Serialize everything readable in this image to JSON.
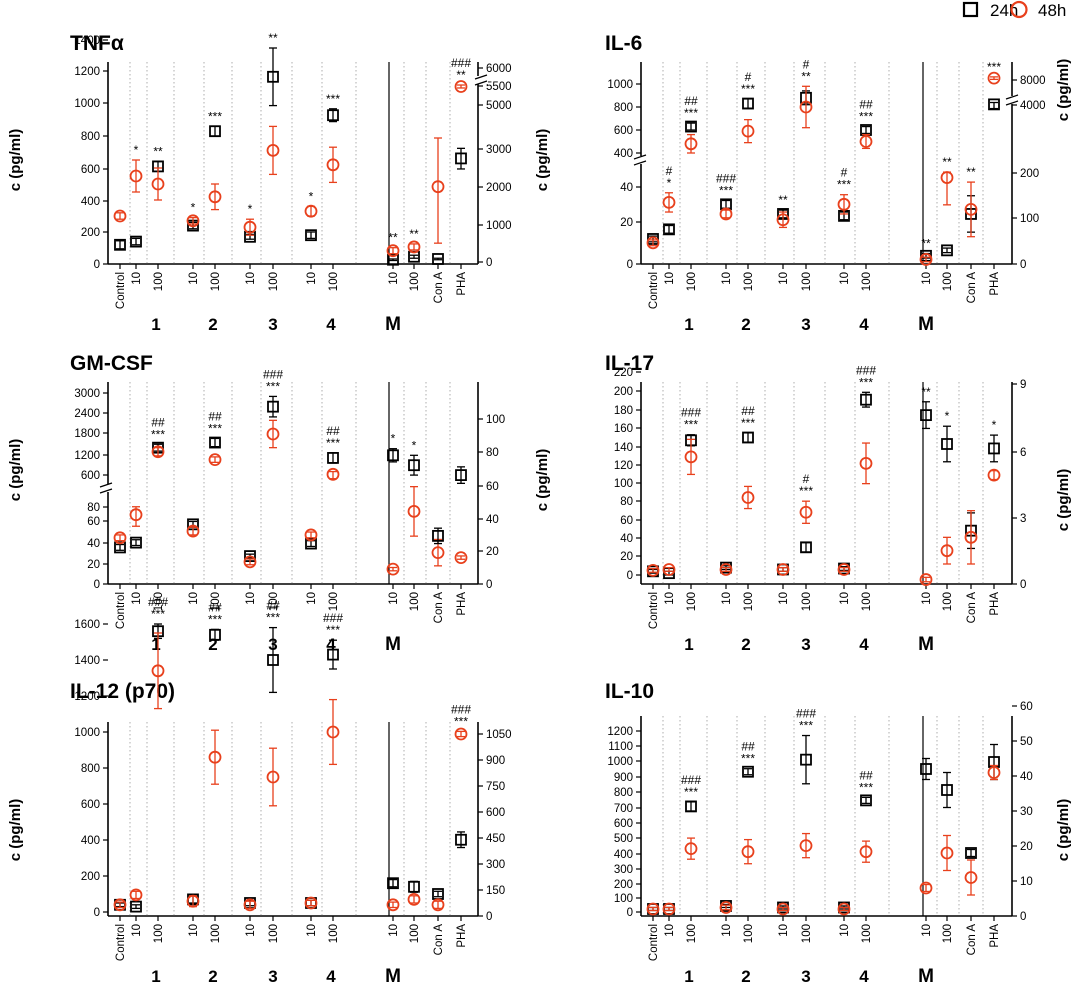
{
  "legend": {
    "items": [
      {
        "label": "24h",
        "marker": "square",
        "color": "#000000"
      },
      {
        "label": "48h",
        "marker": "circle",
        "color": "#e8401c"
      }
    ]
  },
  "chart_data": [
    {
      "type": "scatter",
      "title": "TNFα",
      "ylabel": "c (pg/ml)",
      "y2label": "",
      "left_ticks": [
        "0",
        "200",
        "400",
        "600",
        "800",
        "1000",
        "1200",
        "1400"
      ],
      "right_ticks": [
        "0",
        "1000",
        "2000",
        "3000",
        "5000",
        "5500",
        "6000"
      ],
      "categories": [
        "Control",
        "10",
        "100",
        "10",
        "100",
        "10",
        "100",
        "10",
        "100",
        "10",
        "100",
        "Con A",
        "PHA"
      ],
      "groups": [
        "1",
        "2",
        "3",
        "4",
        "M"
      ],
      "series": [
        {
          "name": "24h",
          "axis": [
            0,
            0,
            0,
            0,
            0,
            0,
            0,
            0,
            0,
            1,
            1,
            1,
            1
          ],
          "values": [
            120,
            140,
            610,
            240,
            830,
            170,
            1170,
            180,
            930,
            60,
            140,
            80,
            2750
          ],
          "errors": [
            25,
            20,
            30,
            20,
            30,
            15,
            180,
            20,
            40,
            20,
            40,
            20,
            280
          ]
        },
        {
          "name": "48h",
          "axis": [
            0,
            0,
            0,
            0,
            0,
            0,
            0,
            0,
            0,
            1,
            1,
            1,
            1
          ],
          "values": [
            300,
            550,
            500,
            270,
            420,
            230,
            710,
            330,
            620,
            300,
            400,
            2000,
            5500
          ],
          "errors": [
            20,
            100,
            100,
            20,
            80,
            50,
            150,
            30,
            110,
            80,
            80,
            1500,
            40
          ]
        }
      ],
      "annotations": [
        [
          "",
          "*",
          "**",
          "*",
          "***",
          "*",
          "**",
          "*",
          "***",
          "**",
          "**",
          "",
          "**"
        ],
        [
          "",
          "",
          "",
          "",
          "",
          "",
          "",
          "",
          "",
          "",
          "",
          "",
          "###"
        ]
      ]
    },
    {
      "type": "scatter",
      "title": "IL-6",
      "ylabel": "c (pg/ml)",
      "y2label": "c (pg/ml)",
      "left_ticks": [
        "0",
        "20",
        "40",
        "400",
        "600",
        "800",
        "1000"
      ],
      "right_ticks": [
        "0",
        "100",
        "200",
        "4000",
        "8000"
      ],
      "categories": [
        "Control",
        "10",
        "100",
        "10",
        "100",
        "10",
        "100",
        "10",
        "100",
        "10",
        "100",
        "Con A",
        "PHA"
      ],
      "groups": [
        "1",
        "2",
        "3",
        "4",
        "M"
      ],
      "series": [
        {
          "name": "24h",
          "axis": [
            0,
            0,
            0,
            0,
            0,
            0,
            0,
            0,
            0,
            1,
            1,
            1,
            1
          ],
          "values": [
            13,
            18,
            630,
            31,
            830,
            26,
            880,
            25,
            600,
            18,
            30,
            110,
            4100
          ],
          "errors": [
            1.5,
            2,
            30,
            2,
            40,
            2,
            60,
            2,
            30,
            5,
            5,
            40,
            300
          ]
        },
        {
          "name": "48h",
          "axis": [
            0,
            0,
            0,
            0,
            0,
            0,
            0,
            0,
            0,
            1,
            1,
            1,
            1
          ],
          "values": [
            11,
            32,
            480,
            26,
            590,
            23,
            800,
            31,
            500,
            10,
            190,
            120,
            8300
          ],
          "errors": [
            1.5,
            5,
            80,
            2,
            100,
            4,
            180,
            5,
            60,
            5,
            60,
            60,
            200
          ]
        }
      ],
      "annotations": [
        [
          "",
          "*",
          "***",
          "***",
          "***",
          "**",
          "**",
          "***",
          "***",
          "**",
          "**",
          "**",
          "***"
        ],
        [
          "",
          "#",
          "##",
          "###",
          "#",
          "",
          "#",
          "#",
          "##",
          "",
          "",
          "",
          ""
        ]
      ]
    },
    {
      "type": "scatter",
      "title": "GM-CSF",
      "ylabel": "c (pg/ml)",
      "y2label": "",
      "left_ticks": [
        "0",
        "20",
        "40",
        "60",
        "80",
        "600",
        "1200",
        "1800",
        "2400",
        "3000"
      ],
      "right_ticks": [
        "0",
        "20",
        "40",
        "60",
        "80",
        "100"
      ],
      "categories": [
        "Control",
        "10",
        "100",
        "10",
        "100",
        "10",
        "100",
        "10",
        "100",
        "10",
        "100",
        "Con A",
        "PHA"
      ],
      "groups": [
        "1",
        "2",
        "3",
        "4",
        "M"
      ],
      "series": [
        {
          "name": "24h",
          "axis": [
            0,
            0,
            0,
            0,
            0,
            0,
            0,
            0,
            0,
            1,
            1,
            1,
            1
          ],
          "values": [
            38,
            43,
            1400,
            62,
            1550,
            29,
            2600,
            42,
            1100,
            78,
            72,
            null,
            66
          ],
          "errors": [
            3,
            3,
            100,
            3,
            120,
            2,
            300,
            3,
            150,
            4,
            6,
            null,
            5
          ]
        },
        {
          "name": "48h",
          "axis": [
            0,
            0,
            0,
            0,
            0,
            0,
            0,
            0,
            0,
            1,
            1,
            1,
            1
          ],
          "values": [
            48,
            72,
            1280,
            55,
            1050,
            23,
            1800,
            51,
            620,
            9,
            44,
            19,
            16
          ],
          "errors": [
            3,
            12,
            120,
            4,
            80,
            3,
            400,
            3,
            80,
            1,
            15,
            8,
            1
          ]
        },
        {
          "name": "24h",
          "axis": [
            0,
            0,
            0,
            0,
            0,
            0,
            0,
            0,
            0,
            0,
            0,
            0,
            0
          ],
          "values": [
            null,
            null,
            null,
            null,
            null,
            null,
            null,
            null,
            null,
            null,
            null,
            50,
            null
          ],
          "errors": [
            null,
            null,
            null,
            null,
            null,
            null,
            null,
            null,
            null,
            null,
            null,
            8,
            null
          ]
        }
      ],
      "annotations": [
        [
          "",
          "",
          "***",
          "",
          "***",
          "",
          "***",
          "",
          "***",
          "*",
          "*",
          "",
          ""
        ],
        [
          "",
          "",
          "##",
          "",
          "##",
          "",
          "###",
          "",
          "##",
          "",
          "",
          "",
          ""
        ]
      ]
    },
    {
      "type": "scatter",
      "title": "IL-17",
      "ylabel": "c (pg/ml)",
      "y2label": "c (pg/ml)",
      "left_ticks": [
        "0",
        "20",
        "40",
        "60",
        "80",
        "100",
        "120",
        "140",
        "160",
        "180",
        "200",
        "220"
      ],
      "right_ticks": [
        "0",
        "3",
        "6",
        "9"
      ],
      "categories": [
        "Control",
        "10",
        "100",
        "10",
        "100",
        "10",
        "100",
        "10",
        "100",
        "10",
        "100",
        "Con A",
        "PHA"
      ],
      "groups": [
        "1",
        "2",
        "3",
        "4",
        "M"
      ],
      "series": [
        {
          "name": "24h",
          "axis": [
            0,
            0,
            0,
            0,
            0,
            0,
            0,
            0,
            0,
            1,
            1,
            1,
            1
          ],
          "values": [
            4,
            2,
            146,
            8,
            149,
            6,
            30,
            7,
            190,
            7.6,
            6.3,
            2.4,
            6.1
          ],
          "errors": [
            2,
            2,
            6,
            2,
            5,
            2,
            5,
            2,
            8,
            0.6,
            0.8,
            0.8,
            0.6
          ]
        },
        {
          "name": "48h",
          "axis": [
            0,
            0,
            0,
            0,
            0,
            0,
            0,
            0,
            0,
            1,
            1,
            1,
            1
          ],
          "values": [
            5,
            6,
            128,
            6,
            84,
            6,
            68,
            6,
            121,
            0.2,
            1.5,
            2.1,
            4.9
          ],
          "errors": [
            2,
            2,
            19,
            2,
            12,
            2,
            12,
            2,
            22,
            0.1,
            0.6,
            1.2,
            0.2
          ]
        }
      ],
      "annotations": [
        [
          "",
          "",
          "***",
          "",
          "***",
          "",
          "***",
          "",
          "***",
          "**",
          "*",
          "",
          "*"
        ],
        [
          "",
          "",
          "###",
          "",
          "##",
          "",
          "#",
          "",
          "###",
          "",
          "",
          "",
          ""
        ]
      ]
    },
    {
      "type": "scatter",
      "title": "IL-12 (p70)",
      "ylabel": "c (pg/ml)",
      "y2label": "",
      "left_ticks": [
        "0",
        "200",
        "400",
        "600",
        "800",
        "1000",
        "1200",
        "1400",
        "1600"
      ],
      "right_ticks": [
        "0",
        "150",
        "300",
        "450",
        "600",
        "750",
        "900",
        "1050"
      ],
      "categories": [
        "Control",
        "10",
        "100",
        "10",
        "100",
        "10",
        "100",
        "10",
        "100",
        "10",
        "100",
        "Con A",
        "PHA"
      ],
      "groups": [
        "1",
        "2",
        "3",
        "4",
        "M"
      ],
      "series": [
        {
          "name": "24h",
          "axis": [
            0,
            0,
            0,
            0,
            0,
            0,
            0,
            0,
            0,
            0,
            0,
            0,
            1
          ],
          "values": [
            40,
            30,
            1560,
            70,
            1540,
            50,
            1400,
            50,
            1430,
            160,
            140,
            100,
            440
          ],
          "errors": [
            10,
            10,
            40,
            20,
            30,
            15,
            180,
            15,
            80,
            20,
            30,
            15,
            45
          ]
        },
        {
          "name": "48h",
          "axis": [
            0,
            0,
            0,
            0,
            0,
            0,
            0,
            0,
            0,
            0,
            0,
            0,
            1
          ],
          "values": [
            40,
            95,
            1340,
            60,
            860,
            40,
            750,
            50,
            1000,
            40,
            70,
            40,
            1050
          ],
          "errors": [
            15,
            20,
            210,
            30,
            150,
            20,
            160,
            15,
            180,
            15,
            20,
            20,
            15
          ]
        }
      ],
      "annotations": [
        [
          "",
          "",
          "***",
          "",
          "***",
          "",
          "***",
          "",
          "***",
          "",
          "",
          "",
          "***"
        ],
        [
          "",
          "",
          "###",
          "",
          "##",
          "",
          "##",
          "",
          "###",
          "",
          "",
          "",
          "###"
        ]
      ]
    },
    {
      "type": "scatter",
      "title": "IL-10",
      "ylabel": "",
      "y2label": "c (pg/ml)",
      "left_ticks": [
        "0",
        "100",
        "200",
        "300",
        "400",
        "500",
        "600",
        "700",
        "800",
        "900",
        "1000",
        "1100",
        "1200"
      ],
      "right_ticks": [
        "0",
        "10",
        "20",
        "30",
        "40",
        "50",
        "60"
      ],
      "categories": [
        "Control",
        "10",
        "100",
        "10",
        "100",
        "10",
        "100",
        "10",
        "100",
        "10",
        "100",
        "Con A",
        "PHA"
      ],
      "groups": [
        "1",
        "2",
        "3",
        "4",
        "M"
      ],
      "series": [
        {
          "name": "24h",
          "axis": [
            0,
            0,
            0,
            0,
            0,
            0,
            0,
            0,
            0,
            1,
            1,
            1,
            1
          ],
          "values": [
            20,
            20,
            700,
            40,
            930,
            30,
            1010,
            30,
            740,
            42,
            36,
            18,
            44
          ],
          "errors": [
            10,
            10,
            30,
            10,
            20,
            10,
            160,
            10,
            20,
            3,
            5,
            1,
            5
          ]
        },
        {
          "name": "48h",
          "axis": [
            0,
            0,
            0,
            0,
            0,
            0,
            0,
            0,
            0,
            1,
            1,
            1,
            1
          ],
          "values": [
            20,
            20,
            420,
            30,
            400,
            20,
            440,
            20,
            400,
            8,
            18,
            11,
            41
          ],
          "errors": [
            10,
            10,
            70,
            15,
            80,
            10,
            80,
            10,
            70,
            1,
            5,
            5,
            2
          ]
        }
      ],
      "annotations": [
        [
          "",
          "",
          "***",
          "",
          "***",
          "",
          "***",
          "",
          "***",
          "",
          "",
          "",
          ""
        ],
        [
          "",
          "",
          "###",
          "",
          "##",
          "",
          "###",
          "",
          "##",
          "",
          "",
          "",
          ""
        ]
      ]
    }
  ]
}
